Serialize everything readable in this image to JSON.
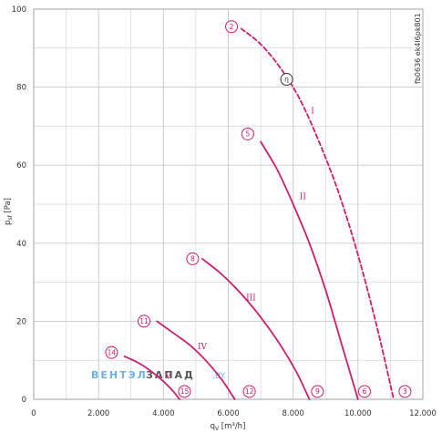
{
  "chart_data": {
    "type": "line",
    "ylabel": "p",
    "ylabel_sub": "sf",
    "ylabel_unit": "[Pa]",
    "xlabel": "q",
    "xlabel_sub": "V",
    "xlabel_unit": "[m³/h]",
    "xlim": [
      0,
      12000
    ],
    "ylim": [
      0,
      100
    ],
    "x_ticks": [
      0,
      2000,
      4000,
      6000,
      8000,
      10000,
      12000
    ],
    "x_tick_labels": [
      "0",
      "2.000",
      "4.000",
      "6.000",
      "8.000",
      "10.000",
      "12.000"
    ],
    "y_ticks": [
      0,
      20,
      40,
      60,
      80,
      100
    ],
    "y_tick_labels": [
      "0",
      "20",
      "40",
      "60",
      "80",
      "100"
    ],
    "grid": true,
    "code_label": "fb0636 ek4l6pk801",
    "colors": {
      "curve": "#cc1e6e",
      "grid": "#c8c8c8",
      "axis": "#333333"
    },
    "series": [
      {
        "name": "I",
        "style": "dashed",
        "x": [
          6400,
          7000,
          7600,
          8200,
          8800,
          9400,
          10000,
          10600,
          11100
        ],
        "y": [
          95,
          91,
          85,
          77,
          66,
          53,
          37,
          18,
          0
        ]
      },
      {
        "name": "II",
        "style": "solid",
        "x": [
          7000,
          7500,
          8000,
          8500,
          9000,
          9500,
          10000
        ],
        "y": [
          66,
          59,
          50,
          40,
          28,
          14,
          0
        ]
      },
      {
        "name": "III",
        "style": "solid",
        "x": [
          5200,
          5800,
          6400,
          7000,
          7600,
          8100,
          8500
        ],
        "y": [
          36,
          32,
          27,
          21,
          14,
          7,
          0
        ]
      },
      {
        "name": "IV",
        "style": "solid",
        "x": [
          3800,
          4300,
          4800,
          5300,
          5800,
          6200
        ],
        "y": [
          20,
          17,
          14,
          10,
          5,
          0
        ]
      },
      {
        "name": "V",
        "style": "solid",
        "x": [
          2800,
          3300,
          3800,
          4200,
          4500
        ],
        "y": [
          11,
          9,
          6,
          3,
          0
        ]
      }
    ],
    "roman_labels": [
      {
        "text": "I",
        "x": 8600,
        "y": 74
      },
      {
        "text": "II",
        "x": 8300,
        "y": 52
      },
      {
        "text": "III",
        "x": 6700,
        "y": 26
      },
      {
        "text": "IV",
        "x": 5200,
        "y": 13.5
      },
      {
        "text": "V",
        "x": 4150,
        "y": 6
      }
    ],
    "markers": [
      {
        "text": "2",
        "x": 6100,
        "y": 95.5
      },
      {
        "text": "η",
        "x": 7800,
        "y": 82
      },
      {
        "text": "5",
        "x": 6600,
        "y": 68
      },
      {
        "text": "8",
        "x": 4900,
        "y": 36
      },
      {
        "text": "11",
        "x": 3400,
        "y": 20
      },
      {
        "text": "14",
        "x": 2400,
        "y": 12
      },
      {
        "text": "15",
        "x": 4650,
        "y": 2
      },
      {
        "text": "12",
        "x": 6650,
        "y": 2
      },
      {
        "text": "9",
        "x": 8750,
        "y": 2
      },
      {
        "text": "6",
        "x": 10200,
        "y": 2
      },
      {
        "text": "3",
        "x": 11450,
        "y": 2
      }
    ]
  },
  "watermark": {
    "part1": "ВЕНТЭЛ",
    "part2": "ЗАПАД",
    "part3": ".BY"
  }
}
